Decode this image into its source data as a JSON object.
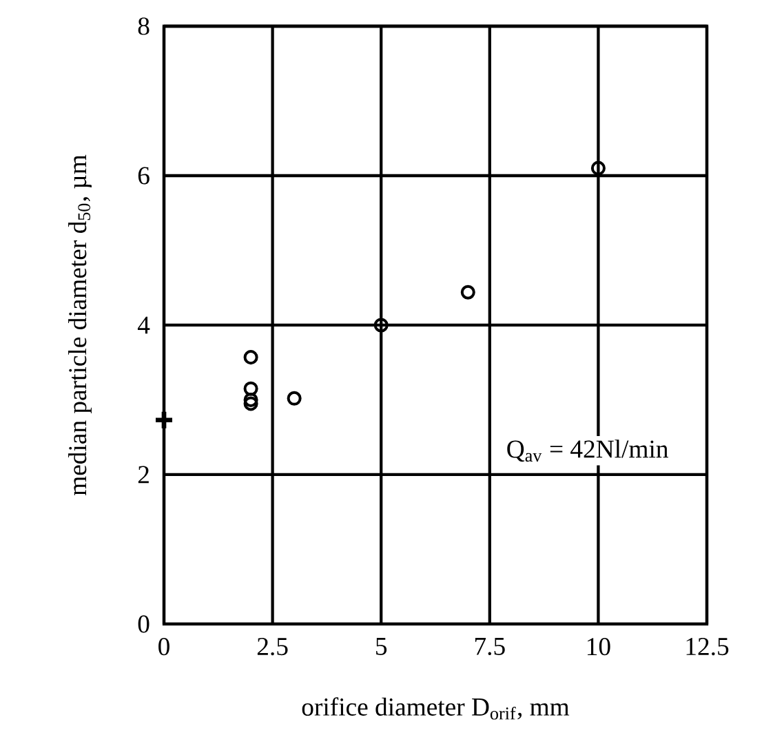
{
  "chart_data": {
    "type": "scatter",
    "xlabel": "orifice diameter  D$_{orif}$, mm",
    "ylabel": "median particle diameter  d$_{50}$, µm",
    "series": [
      {
        "color": "#000000",
        "marker": "circle",
        "x": [
          2,
          2,
          2,
          2,
          3,
          5,
          7,
          10
        ],
        "values": [
          3.57,
          3.15,
          3.0,
          2.95,
          3.02,
          4.0,
          4.44,
          6.1
        ]
      },
      {
        "color": "#000000",
        "marker": "cross",
        "x": [
          0
        ],
        "values": [
          2.73
        ]
      }
    ],
    "xlim": [
      0,
      12.5
    ],
    "ylim": [
      0,
      8
    ],
    "xticks": [
      0,
      2.5,
      5,
      7.5,
      10,
      12.5
    ],
    "yticks": [
      0,
      2,
      4,
      6,
      8
    ],
    "grid": true,
    "annotations": [
      "Q$_{av}$ = 42Nl/min"
    ]
  }
}
